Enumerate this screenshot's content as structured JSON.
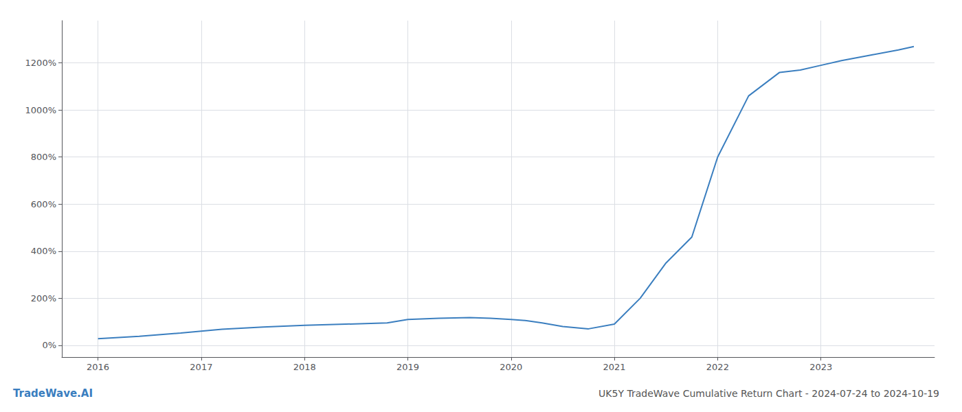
{
  "chart_data": {
    "type": "line",
    "title": "UK5Y TradeWave Cumulative Return Chart - 2024-07-24 to 2024-10-19",
    "watermark": "TradeWave.AI",
    "color": "#3a7ebf",
    "x": [
      2016.0,
      2016.4,
      2016.8,
      2017.2,
      2017.6,
      2018.0,
      2018.4,
      2018.8,
      2019.0,
      2019.3,
      2019.6,
      2019.8,
      2020.0,
      2020.15,
      2020.3,
      2020.5,
      2020.75,
      2021.0,
      2021.25,
      2021.5,
      2021.75,
      2022.0,
      2022.3,
      2022.6,
      2022.8,
      2023.0,
      2023.2,
      2023.5,
      2023.75,
      2023.9
    ],
    "values": [
      28,
      38,
      52,
      68,
      78,
      85,
      90,
      95,
      110,
      115,
      118,
      115,
      110,
      105,
      95,
      80,
      70,
      90,
      200,
      350,
      460,
      800,
      1060,
      1160,
      1170,
      1190,
      1210,
      1235,
      1255,
      1270
    ],
    "xlim": [
      2015.65,
      2024.1
    ],
    "xticks": [
      2016,
      2017,
      2018,
      2019,
      2020,
      2021,
      2022,
      2023
    ],
    "ylim": [
      -50,
      1380
    ],
    "yticks": [
      {
        "value": 0,
        "label": "0%"
      },
      {
        "value": 200,
        "label": "200%"
      },
      {
        "value": 400,
        "label": "400%"
      },
      {
        "value": 600,
        "label": "600%"
      },
      {
        "value": 800,
        "label": "800%"
      },
      {
        "value": 1000,
        "label": "1000%"
      },
      {
        "value": 1200,
        "label": "1200%"
      }
    ],
    "grid": true
  }
}
